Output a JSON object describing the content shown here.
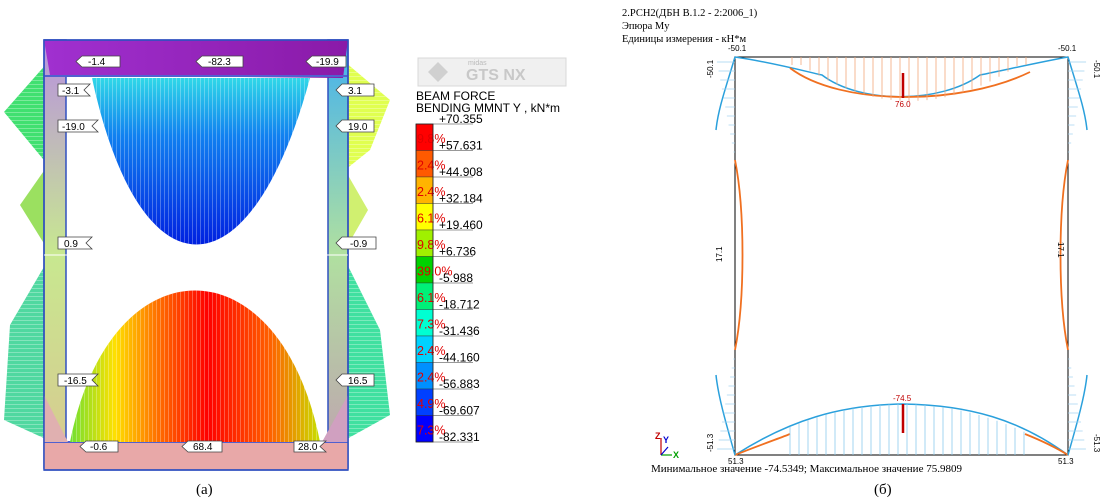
{
  "left_panel": {
    "caption": "(а)",
    "logo_text": "GTS NX",
    "logo_small": "midas",
    "legend_title": [
      "BEAM FORCE",
      "BENDING MMNT Y , kN*m"
    ],
    "legend_values": [
      "+70.355",
      "+57.631",
      "+44.908",
      "+32.184",
      "+19.460",
      "+6.736",
      "-5.988",
      "-18.712",
      "-31.436",
      "-44.160",
      "-56.883",
      "-69.607",
      "-82.331"
    ],
    "legend_percents": [
      "9.8%",
      "2.4%",
      "2.4%",
      "6.1%",
      "9.8%",
      "39.0%",
      "6.1%",
      "7.3%",
      "2.4%",
      "2.4%",
      "4.9%",
      "7.3%"
    ],
    "legend_colors": [
      "#ff0000",
      "#ff5a00",
      "#ffb400",
      "#ffff00",
      "#a0f000",
      "#00d200",
      "#00f078",
      "#00ffd2",
      "#00d2ff",
      "#0090ff",
      "#0040ff",
      "#0000ff"
    ],
    "tags": {
      "top_left": "-1.4",
      "top_mid": "-82.3",
      "top_right": "-19.9",
      "upper_left_a": "-3.1",
      "upper_left_b": "-19.0",
      "upper_right_a": "3.1",
      "upper_right_b": "19.0",
      "mid_left": "0.9",
      "mid_right": "-0.9",
      "low_left": "-16.5",
      "low_right": "16.5",
      "bot_left": "-0.6",
      "bot_mid": "68.4",
      "bot_right": "28.0"
    }
  },
  "right_panel": {
    "caption": "(б)",
    "header": [
      "2.РСН2(ДБН В.1.2 - 2:2006_1)",
      "Эпюра My",
      "Единицы измерения - кН*м"
    ],
    "footer": "Минимальное значение  -74.5349; Максимальное значение  75.9809",
    "labels": {
      "top_left": "-50.1",
      "top_right": "-50.1",
      "side_top_left": "-50.1",
      "side_top_right": "-50.1",
      "top_mid": "76.0",
      "left_mid": "17.1",
      "right_mid": "17.1",
      "bottom_mid": "-74.5",
      "side_bot_left": "-51.3",
      "side_bot_right": "-51.3",
      "bot_left": "51.3",
      "bot_right": "51.3"
    },
    "axes": {
      "z": "Z",
      "y": "Y",
      "x": "X"
    },
    "colors": {
      "negative": "#2aa0dc",
      "positive": "#f07020",
      "peak": "#c00000",
      "frame": "#000000"
    }
  }
}
